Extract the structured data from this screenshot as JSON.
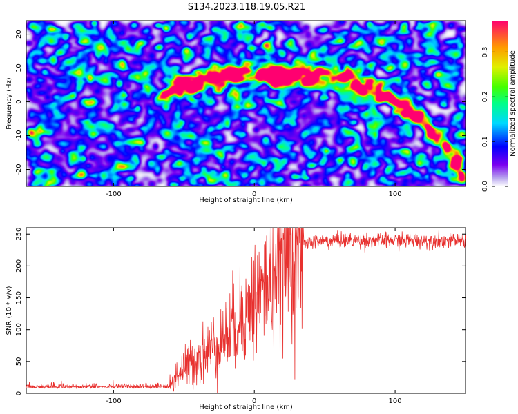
{
  "chart_data": [
    {
      "type": "heatmap",
      "title": "S134.2023.118.19.05.R21",
      "xlabel": "Height of straight line (km)",
      "ylabel": "Frequency (Hz)",
      "xlim": [
        -162,
        150
      ],
      "ylim": [
        -25,
        24
      ],
      "xticks": [
        -100,
        0,
        100
      ],
      "yticks": [
        -20,
        -10,
        0,
        10,
        20
      ],
      "colorbar": {
        "label": "Normalized spectral amplitude",
        "range": [
          0.0,
          0.37
        ],
        "ticks": [
          0.0,
          0.1,
          0.2,
          0.3
        ]
      },
      "ridge": {
        "description_points_x": [
          -65,
          -50,
          -30,
          -10,
          0,
          20,
          40,
          60,
          80,
          100,
          120,
          140,
          148
        ],
        "description_points_y": [
          3,
          5,
          7,
          8,
          8,
          8,
          8,
          7,
          4,
          0,
          -6,
          -15,
          -22
        ]
      },
      "peaks": [
        {
          "x": 63,
          "y": 7,
          "amplitude": 0.36
        },
        {
          "x": -28,
          "y": 7,
          "amplitude": 0.33
        },
        {
          "x": 147,
          "y": -23,
          "amplitude": 0.35
        },
        {
          "x": 140,
          "y": -19,
          "amplitude": 0.3
        }
      ]
    },
    {
      "type": "line",
      "xlabel": "Height of straight line (km)",
      "ylabel": "SNR (10 * v/v)",
      "xlim": [
        -162,
        150
      ],
      "ylim": [
        0,
        260
      ],
      "xticks": [
        -100,
        0,
        100
      ],
      "yticks": [
        0,
        50,
        100,
        150,
        200,
        250
      ],
      "color": "#e8312f",
      "profile_x": [
        -162,
        -60,
        -55,
        -40,
        -20,
        0,
        10,
        20,
        30,
        40,
        60,
        150
      ],
      "profile_y": [
        10,
        10,
        30,
        55,
        90,
        145,
        175,
        205,
        228,
        238,
        240,
        240
      ]
    }
  ]
}
